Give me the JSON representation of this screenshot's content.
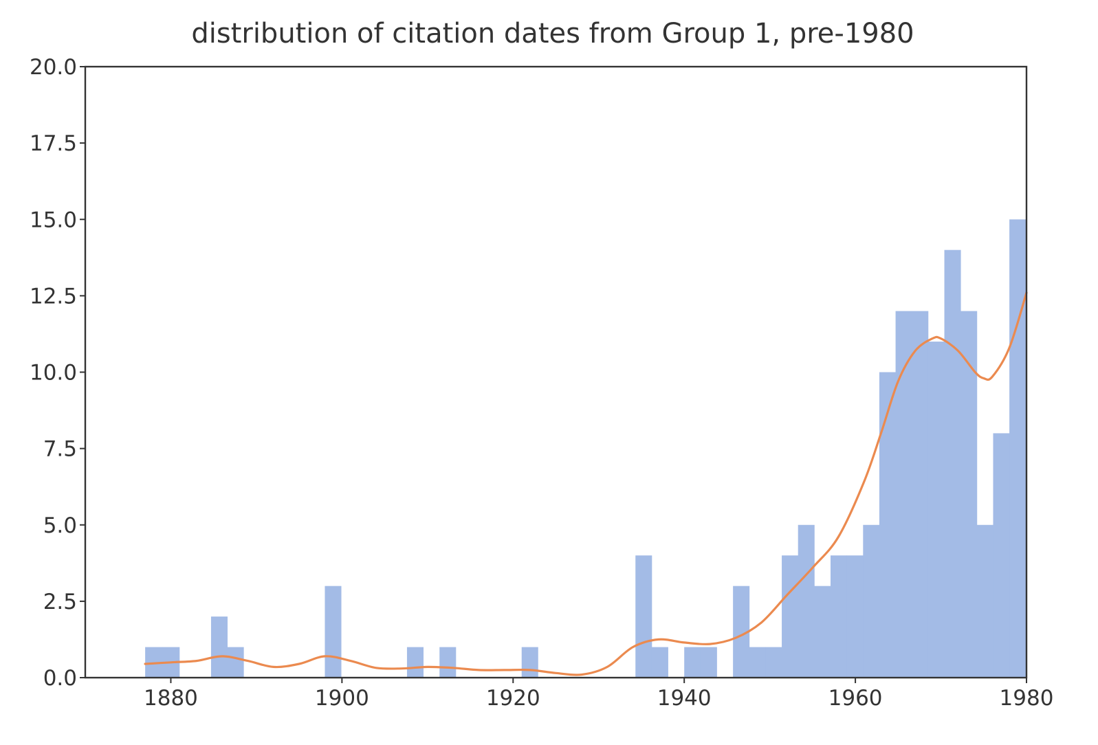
{
  "chart_data": {
    "type": "bar",
    "title": "distribution of citation dates from Group 1, pre-1980",
    "xlabel": "",
    "ylabel": "",
    "xlim": [
      1870,
      1980
    ],
    "ylim": [
      0,
      20
    ],
    "xticks": [
      1880,
      1900,
      1920,
      1940,
      1960,
      1980
    ],
    "yticks": [
      0.0,
      2.5,
      5.0,
      7.5,
      10.0,
      12.5,
      15.0,
      17.5,
      20.0
    ],
    "bin_width": 1.9,
    "bins": [
      {
        "start": 1877.0,
        "end": 1879.0,
        "count": 1
      },
      {
        "start": 1879.0,
        "end": 1881.0,
        "count": 1
      },
      {
        "start": 1884.7,
        "end": 1886.6,
        "count": 2
      },
      {
        "start": 1886.6,
        "end": 1888.5,
        "count": 1
      },
      {
        "start": 1898.0,
        "end": 1899.9,
        "count": 3
      },
      {
        "start": 1907.6,
        "end": 1909.5,
        "count": 1
      },
      {
        "start": 1911.4,
        "end": 1913.3,
        "count": 1
      },
      {
        "start": 1921.0,
        "end": 1922.9,
        "count": 1
      },
      {
        "start": 1934.3,
        "end": 1936.2,
        "count": 4
      },
      {
        "start": 1936.2,
        "end": 1938.1,
        "count": 1
      },
      {
        "start": 1940.0,
        "end": 1941.9,
        "count": 1
      },
      {
        "start": 1941.9,
        "end": 1943.8,
        "count": 1
      },
      {
        "start": 1945.7,
        "end": 1947.6,
        "count": 3
      },
      {
        "start": 1947.6,
        "end": 1949.5,
        "count": 1
      },
      {
        "start": 1949.5,
        "end": 1951.4,
        "count": 1
      },
      {
        "start": 1951.4,
        "end": 1953.3,
        "count": 4
      },
      {
        "start": 1953.3,
        "end": 1955.2,
        "count": 5
      },
      {
        "start": 1955.2,
        "end": 1957.1,
        "count": 3
      },
      {
        "start": 1957.1,
        "end": 1959.0,
        "count": 4
      },
      {
        "start": 1959.0,
        "end": 1960.9,
        "count": 4
      },
      {
        "start": 1960.9,
        "end": 1962.8,
        "count": 5
      },
      {
        "start": 1962.8,
        "end": 1964.7,
        "count": 10
      },
      {
        "start": 1964.7,
        "end": 1966.6,
        "count": 12
      },
      {
        "start": 1966.6,
        "end": 1968.5,
        "count": 12
      },
      {
        "start": 1968.5,
        "end": 1970.4,
        "count": 11
      },
      {
        "start": 1970.4,
        "end": 1972.3,
        "count": 14
      },
      {
        "start": 1972.3,
        "end": 1974.2,
        "count": 12
      },
      {
        "start": 1974.2,
        "end": 1976.1,
        "count": 5
      },
      {
        "start": 1976.1,
        "end": 1978.0,
        "count": 8
      },
      {
        "start": 1978.0,
        "end": 1979.9,
        "count": 15
      }
    ],
    "curve": {
      "type": "line",
      "x": [
        1877,
        1880,
        1883,
        1886,
        1889,
        1892,
        1895,
        1898,
        1901,
        1904,
        1907,
        1910,
        1913,
        1916,
        1919,
        1922,
        1925,
        1928,
        1931,
        1934,
        1937,
        1940,
        1943,
        1946,
        1949,
        1952,
        1955,
        1958,
        1961,
        1963,
        1965,
        1967,
        1969,
        1970,
        1972,
        1974,
        1975,
        1976,
        1978,
        1980
      ],
      "y": [
        0.45,
        0.5,
        0.55,
        0.7,
        0.55,
        0.35,
        0.45,
        0.7,
        0.55,
        0.32,
        0.3,
        0.35,
        0.32,
        0.25,
        0.25,
        0.25,
        0.15,
        0.1,
        0.35,
        1.0,
        1.25,
        1.15,
        1.1,
        1.3,
        1.8,
        2.7,
        3.6,
        4.6,
        6.4,
        8.0,
        9.7,
        10.7,
        11.1,
        11.1,
        10.7,
        10.0,
        9.8,
        9.85,
        10.8,
        12.6
      ]
    },
    "colors": {
      "bars": "#a3bbe6",
      "curve": "#eb8a4f",
      "axes": "#333333",
      "text": "#333333"
    },
    "grid": false,
    "legend": "none"
  }
}
